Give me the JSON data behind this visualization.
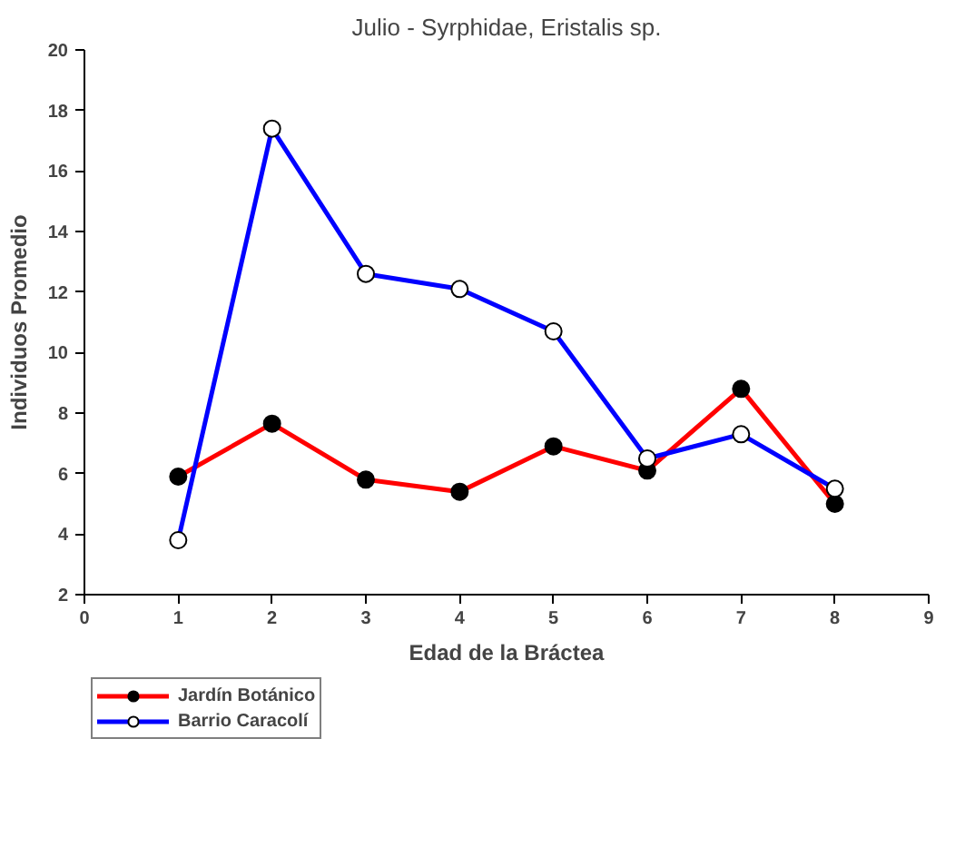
{
  "chart_data": {
    "type": "line",
    "title": "Julio - Syrphidae, Eristalis sp.",
    "xlabel": "Edad de la Bráctea",
    "ylabel": "Individuos Promedio",
    "x": [
      1,
      2,
      3,
      4,
      5,
      6,
      7,
      8
    ],
    "series": [
      {
        "name": "Jardín Botánico",
        "color": "#ff0000",
        "colors": [
          "#000000",
          "#000000",
          "#000000",
          "#000000",
          "#000000",
          "#000000",
          "#000000",
          "#000000"
        ],
        "values": [
          5.9,
          7.65,
          5.8,
          5.4,
          6.9,
          6.1,
          8.8,
          5.0
        ]
      },
      {
        "name": "Barrio Caracolí",
        "color": "#0000ff",
        "colors": [
          "#ffffff",
          "#ffffff",
          "#ffffff",
          "#ffffff",
          "#ffffff",
          "#ffffff",
          "#ffffff",
          "#ffffff"
        ],
        "values": [
          3.8,
          17.4,
          12.6,
          12.1,
          10.7,
          6.5,
          7.3,
          5.5
        ]
      }
    ],
    "xlim": [
      0,
      9
    ],
    "xticks": [
      0,
      1,
      2,
      3,
      4,
      5,
      6,
      7,
      8,
      9
    ],
    "ylim": [
      2,
      20
    ],
    "yticks": [
      2,
      4,
      6,
      8,
      10,
      12,
      14,
      16,
      18,
      20
    ],
    "grid": false,
    "legend": "bottom left",
    "marker": "circle",
    "line_style": "solid"
  }
}
